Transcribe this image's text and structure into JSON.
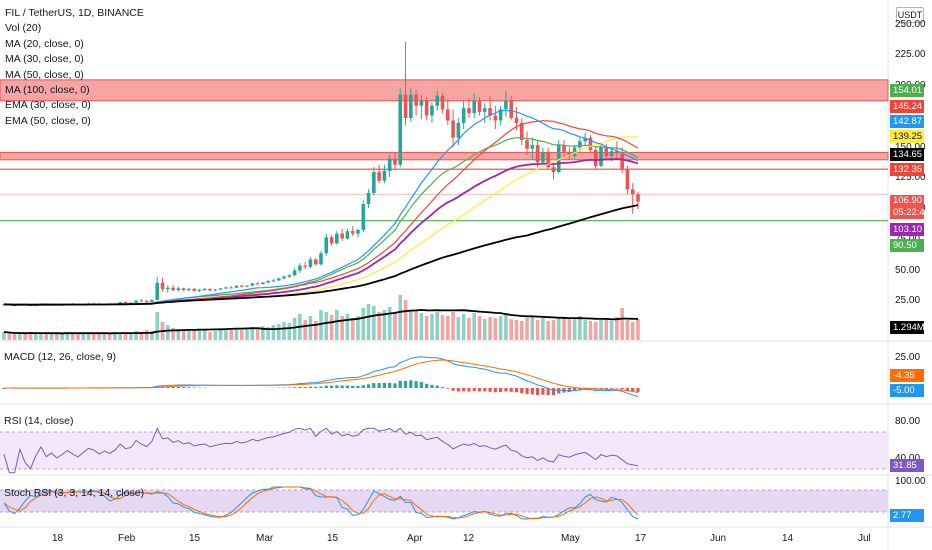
{
  "header": {
    "symbol": "FIL / TetherUS, 1D, BINANCE",
    "indicators": [
      "Vol (20)",
      "MA (20, close, 0)",
      "MA (30, close, 0)",
      "MA (50, close, 0)",
      "MA (100, close, 0)",
      "EMA (30, close, 0)",
      "EMA (50, close, 0)"
    ],
    "currency": "USDT"
  },
  "colors": {
    "up": "#26a69a",
    "down": "#ef5350",
    "vol_up": "#8fd0c6",
    "vol_down": "#f4a3a1",
    "zone": "#ef5350",
    "support": "#4caf50",
    "ma20": "#2196f3",
    "ma30": "#f44336",
    "ma50": "#ffeb3b",
    "ma100": "#000000",
    "ema30": "#4caf50",
    "ema50": "#9c27b0",
    "macd": "#2196f3",
    "signal": "#ff6d00",
    "rsi": "#7e57c2",
    "stoch_k": "#2196f3",
    "stoch_d": "#ff6d00"
  },
  "price_axis": {
    "ticks": [
      "250.00",
      "225.00",
      "200.00",
      "150.00",
      "125.00",
      "100.00",
      "75.00",
      "50.00",
      "25.00"
    ],
    "badges": [
      {
        "text": "154.01",
        "color": "#4caf50"
      },
      {
        "text": "145.24",
        "color": "#f44336"
      },
      {
        "text": "142.87",
        "color": "#2196f3"
      },
      {
        "text": "139.25",
        "color": "#ffeb3b"
      },
      {
        "text": "134.65",
        "color": "#000000"
      },
      {
        "text": "132.35",
        "color": "#f44336"
      },
      {
        "text": "106.90",
        "sub": "05:22:44",
        "color": "#ef5350"
      },
      {
        "text": "103.10",
        "color": "#9c27b0"
      },
      {
        "text": "90.50",
        "color": "#4caf50"
      },
      {
        "text": "1.294M",
        "color": "#000000"
      }
    ]
  },
  "time_axis": [
    "18",
    "Feb",
    "15",
    "Mar",
    "15",
    "Apr",
    "12",
    "May",
    "17",
    "Jun",
    "14",
    "Jul"
  ],
  "panes": {
    "macd": {
      "title": "MACD (12, 26, close, 9)",
      "ticks": [
        "25.00"
      ],
      "badges": [
        {
          "text": "-4.35",
          "color": "#ff6d00"
        },
        {
          "text": "-5.00",
          "color": "#2196f3"
        }
      ]
    },
    "rsi": {
      "title": "RSI (14, close)",
      "ticks": [
        "80.00",
        "40.00"
      ],
      "badges": [
        {
          "text": "31.85",
          "color": "#7e57c2"
        }
      ]
    },
    "stoch": {
      "title": "Stoch RSI (3, 3, 14, 14, close)",
      "ticks": [
        "100.00"
      ],
      "badges": [
        {
          "text": "2.77",
          "color": "#2196f3"
        }
      ]
    }
  },
  "chart_data": {
    "type": "candlestick",
    "title": "FIL / TetherUS, 1D, BINANCE",
    "ylim": [
      0,
      260
    ],
    "zones": [
      {
        "from": 188,
        "to": 205
      },
      {
        "from": 140,
        "to": 146
      }
    ],
    "lines": [
      {
        "value": 132.35,
        "color": "#f44336"
      },
      {
        "value": 90.5,
        "color": "#4caf50"
      }
    ],
    "candles": [
      [
        22,
        23,
        21,
        22.5
      ],
      [
        22.5,
        23,
        21.5,
        22
      ],
      [
        22,
        22.5,
        21,
        21.8
      ],
      [
        21.8,
        23,
        21.5,
        22.6
      ],
      [
        22.6,
        23.2,
        21.8,
        22
      ],
      [
        22,
        22.8,
        21.2,
        21.5
      ],
      [
        21.5,
        22.5,
        21,
        22.2
      ],
      [
        22.2,
        23.4,
        21.9,
        23
      ],
      [
        23,
        23.5,
        21.8,
        22.1
      ],
      [
        22.1,
        22.8,
        21.4,
        22.5
      ],
      [
        22.5,
        23,
        21.6,
        21.9
      ],
      [
        21.9,
        22.6,
        21.2,
        22.3
      ],
      [
        22.3,
        23.2,
        21.8,
        22.8
      ],
      [
        22.8,
        23.5,
        22,
        22.4
      ],
      [
        22.4,
        23,
        21.6,
        22
      ],
      [
        22,
        22.8,
        21.5,
        22.6
      ],
      [
        22.6,
        23.6,
        22.1,
        23.2
      ],
      [
        23.2,
        24,
        22.5,
        23
      ],
      [
        23,
        23.8,
        22.4,
        22.5
      ],
      [
        22.5,
        23.2,
        22,
        22.9
      ],
      [
        22.9,
        23.5,
        22.3,
        22.6
      ],
      [
        22.6,
        23.4,
        22,
        23.1
      ],
      [
        23.1,
        24.5,
        22.8,
        24.2
      ],
      [
        24.2,
        25,
        23.4,
        23.6
      ],
      [
        23.6,
        24.2,
        22.8,
        23.8
      ],
      [
        23.8,
        26,
        23.4,
        25.5
      ],
      [
        25.5,
        27,
        24.8,
        25
      ],
      [
        25,
        26,
        24,
        24.6
      ],
      [
        24.6,
        26.5,
        24.2,
        26
      ],
      [
        26,
        45,
        25.8,
        40
      ],
      [
        40,
        44,
        33,
        35
      ],
      [
        35,
        38,
        32,
        36
      ],
      [
        36,
        38,
        33,
        34
      ],
      [
        34,
        37,
        33,
        35.5
      ],
      [
        35.5,
        36,
        33,
        34
      ],
      [
        34,
        36,
        33,
        35
      ],
      [
        35,
        36,
        33,
        33.5
      ],
      [
        33.5,
        35,
        32.5,
        34.5
      ],
      [
        34.5,
        36,
        33.5,
        35
      ],
      [
        35,
        35.5,
        33,
        33.8
      ],
      [
        33.8,
        35,
        33,
        34.6
      ],
      [
        34.6,
        36,
        34,
        35.5
      ],
      [
        35.5,
        37,
        34.8,
        36.2
      ],
      [
        36.2,
        37.5,
        35.5,
        36
      ],
      [
        36,
        38,
        35.6,
        37.5
      ],
      [
        37.5,
        38.5,
        36.5,
        37
      ],
      [
        37,
        38,
        36.2,
        37.8
      ],
      [
        37.8,
        40,
        37.2,
        39.5
      ],
      [
        39.5,
        41,
        38.5,
        39
      ],
      [
        39,
        40.5,
        38.5,
        40.2
      ],
      [
        40.2,
        42,
        39.5,
        41.5
      ],
      [
        41.5,
        43,
        40.5,
        42
      ],
      [
        42,
        44,
        41.2,
        43.5
      ],
      [
        43.5,
        46,
        42.8,
        45
      ],
      [
        45,
        47,
        44,
        46.2
      ],
      [
        46.2,
        52,
        45.5,
        50
      ],
      [
        50,
        56,
        48,
        54
      ],
      [
        54,
        57,
        51,
        53
      ],
      [
        53,
        61,
        52,
        59
      ],
      [
        59,
        60,
        54,
        55
      ],
      [
        55,
        66,
        54,
        64
      ],
      [
        64,
        80,
        62,
        77
      ],
      [
        77,
        79,
        70,
        72
      ],
      [
        72,
        82,
        71,
        80
      ],
      [
        80,
        84,
        74,
        76
      ],
      [
        76,
        84,
        75,
        82
      ],
      [
        82,
        86,
        78,
        80
      ],
      [
        80,
        84,
        77,
        83
      ],
      [
        83,
        107,
        81,
        104
      ],
      [
        104,
        116,
        101,
        113
      ],
      [
        113,
        134,
        111,
        130
      ],
      [
        130,
        136,
        121,
        123
      ],
      [
        123,
        136,
        121,
        131
      ],
      [
        131,
        144,
        126,
        141
      ],
      [
        141,
        146,
        132,
        136
      ],
      [
        136,
        198,
        134,
        193
      ],
      [
        193,
        236,
        168,
        174
      ],
      [
        174,
        198,
        171,
        193
      ],
      [
        193,
        197,
        176,
        184
      ],
      [
        184,
        193,
        173,
        188
      ],
      [
        188,
        191,
        172,
        176
      ],
      [
        176,
        187,
        170,
        184
      ],
      [
        184,
        196,
        180,
        192
      ],
      [
        192,
        194,
        178,
        181
      ],
      [
        181,
        189,
        168,
        172
      ],
      [
        172,
        181,
        150,
        158
      ],
      [
        158,
        174,
        152,
        170
      ],
      [
        170,
        188,
        165,
        182
      ],
      [
        182,
        190,
        174,
        178
      ],
      [
        178,
        194,
        174,
        188
      ],
      [
        188,
        191,
        176,
        179
      ],
      [
        179,
        186,
        170,
        182
      ],
      [
        182,
        192,
        172,
        176
      ],
      [
        176,
        184,
        165,
        172
      ],
      [
        172,
        184,
        168,
        181
      ],
      [
        181,
        196,
        175,
        188
      ],
      [
        188,
        192,
        172,
        174
      ],
      [
        174,
        183,
        164,
        170
      ],
      [
        170,
        174,
        152,
        156
      ],
      [
        156,
        163,
        144,
        149
      ],
      [
        149,
        158,
        140,
        152
      ],
      [
        152,
        156,
        134,
        138
      ],
      [
        138,
        150,
        136,
        146
      ],
      [
        146,
        150,
        132,
        134
      ],
      [
        134,
        138,
        124,
        130
      ],
      [
        130,
        156,
        129,
        152
      ],
      [
        152,
        156,
        142,
        146
      ],
      [
        146,
        150,
        140,
        143
      ],
      [
        143,
        152,
        141,
        150
      ],
      [
        150,
        158,
        146,
        155
      ],
      [
        155,
        162,
        151,
        158
      ],
      [
        158,
        160,
        146,
        148
      ],
      [
        148,
        150,
        132,
        135
      ],
      [
        135,
        152,
        134,
        150
      ],
      [
        150,
        153,
        140,
        143
      ],
      [
        143,
        150,
        139,
        147
      ],
      [
        147,
        155,
        141,
        145
      ],
      [
        145,
        150,
        129,
        132
      ],
      [
        132,
        135,
        112,
        116
      ],
      [
        116,
        121,
        96,
        112
      ],
      [
        112,
        114,
        100,
        106
      ]
    ],
    "volume": [
      8,
      7,
      6,
      7,
      6,
      8,
      6,
      7,
      7,
      6,
      7,
      6,
      8,
      7,
      6,
      7,
      8,
      6,
      7,
      7,
      6,
      8,
      7,
      7,
      6,
      9,
      8,
      10,
      9,
      28,
      18,
      15,
      12,
      11,
      10,
      9,
      10,
      9,
      10,
      8,
      9,
      10,
      11,
      10,
      12,
      10,
      11,
      13,
      12,
      14,
      13,
      15,
      16,
      18,
      17,
      22,
      26,
      20,
      24,
      19,
      30,
      28,
      25,
      30,
      24,
      26,
      22,
      24,
      32,
      36,
      34,
      28,
      30,
      33,
      28,
      45,
      40,
      30,
      29,
      27,
      24,
      26,
      28,
      25,
      24,
      28,
      23,
      26,
      22,
      27,
      24,
      21,
      23,
      22,
      24,
      26,
      21,
      20,
      19,
      22,
      23,
      20,
      22,
      19,
      20,
      21,
      22,
      21,
      22,
      24,
      20,
      19,
      18,
      20,
      22,
      19,
      23,
      32,
      20,
      18,
      21
    ],
    "ma_period_values": {
      "ma20": 142.87,
      "ma30": 145.24,
      "ma50": 139.25,
      "ma100": 134.65,
      "ema50": 103.1,
      "vol": "1.294M"
    }
  }
}
